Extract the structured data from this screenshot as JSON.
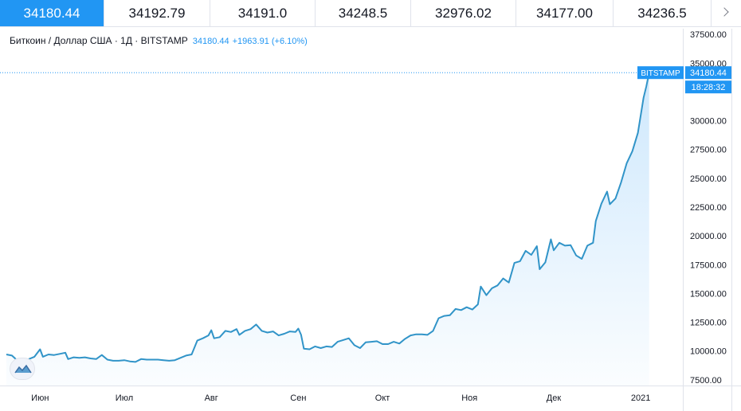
{
  "tabs": [
    {
      "label": "34180.44",
      "active": true
    },
    {
      "label": "34192.79",
      "active": false
    },
    {
      "label": "34191.0",
      "active": false
    },
    {
      "label": "34248.5",
      "active": false
    },
    {
      "label": "32976.02",
      "active": false
    },
    {
      "label": "34177.00",
      "active": false
    },
    {
      "label": "34236.5",
      "active": false
    }
  ],
  "header": {
    "title": "Биткоин / Доллар США · 1Д · BITSTAMP",
    "last_value": "34180.44",
    "change": "+1963.91 (+6.10%)"
  },
  "price_label": {
    "exchange": "BITSTAMP",
    "value": "34180.44",
    "countdown": "18:28:32"
  },
  "colors": {
    "accent": "#2196f3",
    "line": "#3194c8",
    "grid": "#f0f3fa",
    "text": "#131722"
  },
  "icons": {
    "next": "chevron-right-icon",
    "logo": "tradingview-logo-icon"
  },
  "chart_data": {
    "type": "area",
    "ylim": [
      7000,
      38000
    ],
    "yticks": [
      "7500.00",
      "10000.00",
      "12500.00",
      "15000.00",
      "17500.00",
      "20000.00",
      "22500.00",
      "25000.00",
      "27500.00",
      "30000.00",
      "35000.00",
      "37500.00"
    ],
    "ytick_values": [
      7500,
      10000,
      12500,
      15000,
      17500,
      20000,
      22500,
      25000,
      27500,
      30000,
      35000,
      37500
    ],
    "xticks": [
      {
        "label": "Июн",
        "date": "2020-06-01"
      },
      {
        "label": "Июл",
        "date": "2020-07-01"
      },
      {
        "label": "Авг",
        "date": "2020-08-01"
      },
      {
        "label": "Сен",
        "date": "2020-09-01"
      },
      {
        "label": "Окт",
        "date": "2020-10-01"
      },
      {
        "label": "Ноя",
        "date": "2020-11-01"
      },
      {
        "label": "Дек",
        "date": "2020-12-01"
      },
      {
        "label": "2021",
        "date": "2021-01-01"
      }
    ],
    "x_start": "2020-05-20",
    "x_end": "2021-01-16",
    "last_value": 34180.44,
    "series": [
      {
        "points": [
          [
            "2020-05-20",
            9700
          ],
          [
            "2020-05-22",
            9600
          ],
          [
            "2020-05-24",
            9150
          ],
          [
            "2020-05-26",
            8850
          ],
          [
            "2020-05-28",
            9300
          ],
          [
            "2020-05-30",
            9500
          ],
          [
            "2020-06-01",
            10150
          ],
          [
            "2020-06-02",
            9500
          ],
          [
            "2020-06-04",
            9700
          ],
          [
            "2020-06-06",
            9650
          ],
          [
            "2020-06-08",
            9750
          ],
          [
            "2020-06-10",
            9850
          ],
          [
            "2020-06-11",
            9300
          ],
          [
            "2020-06-13",
            9450
          ],
          [
            "2020-06-15",
            9400
          ],
          [
            "2020-06-17",
            9450
          ],
          [
            "2020-06-19",
            9350
          ],
          [
            "2020-06-21",
            9300
          ],
          [
            "2020-06-23",
            9650
          ],
          [
            "2020-06-25",
            9250
          ],
          [
            "2020-06-27",
            9150
          ],
          [
            "2020-06-29",
            9150
          ],
          [
            "2020-07-01",
            9200
          ],
          [
            "2020-07-03",
            9100
          ],
          [
            "2020-07-05",
            9050
          ],
          [
            "2020-07-07",
            9300
          ],
          [
            "2020-07-09",
            9250
          ],
          [
            "2020-07-11",
            9250
          ],
          [
            "2020-07-13",
            9250
          ],
          [
            "2020-07-15",
            9200
          ],
          [
            "2020-07-17",
            9150
          ],
          [
            "2020-07-19",
            9200
          ],
          [
            "2020-07-21",
            9400
          ],
          [
            "2020-07-23",
            9600
          ],
          [
            "2020-07-25",
            9700
          ],
          [
            "2020-07-27",
            10900
          ],
          [
            "2020-07-29",
            11100
          ],
          [
            "2020-07-31",
            11350
          ],
          [
            "2020-08-01",
            11800
          ],
          [
            "2020-08-02",
            11100
          ],
          [
            "2020-08-04",
            11200
          ],
          [
            "2020-08-06",
            11750
          ],
          [
            "2020-08-08",
            11650
          ],
          [
            "2020-08-10",
            11900
          ],
          [
            "2020-08-11",
            11400
          ],
          [
            "2020-08-13",
            11750
          ],
          [
            "2020-08-15",
            11900
          ],
          [
            "2020-08-17",
            12300
          ],
          [
            "2020-08-19",
            11750
          ],
          [
            "2020-08-21",
            11600
          ],
          [
            "2020-08-23",
            11700
          ],
          [
            "2020-08-25",
            11350
          ],
          [
            "2020-08-27",
            11500
          ],
          [
            "2020-08-29",
            11700
          ],
          [
            "2020-08-31",
            11650
          ],
          [
            "2020-09-01",
            11950
          ],
          [
            "2020-09-02",
            11400
          ],
          [
            "2020-09-03",
            10200
          ],
          [
            "2020-09-05",
            10150
          ],
          [
            "2020-09-07",
            10400
          ],
          [
            "2020-09-09",
            10250
          ],
          [
            "2020-09-11",
            10400
          ],
          [
            "2020-09-13",
            10350
          ],
          [
            "2020-09-15",
            10800
          ],
          [
            "2020-09-17",
            10950
          ],
          [
            "2020-09-19",
            11100
          ],
          [
            "2020-09-21",
            10500
          ],
          [
            "2020-09-23",
            10250
          ],
          [
            "2020-09-25",
            10750
          ],
          [
            "2020-09-27",
            10800
          ],
          [
            "2020-09-29",
            10850
          ],
          [
            "2020-10-01",
            10600
          ],
          [
            "2020-10-03",
            10600
          ],
          [
            "2020-10-05",
            10800
          ],
          [
            "2020-10-07",
            10650
          ],
          [
            "2020-10-09",
            11050
          ],
          [
            "2020-10-11",
            11350
          ],
          [
            "2020-10-13",
            11450
          ],
          [
            "2020-10-15",
            11450
          ],
          [
            "2020-10-17",
            11400
          ],
          [
            "2020-10-19",
            11750
          ],
          [
            "2020-10-21",
            12850
          ],
          [
            "2020-10-23",
            13050
          ],
          [
            "2020-10-25",
            13100
          ],
          [
            "2020-10-27",
            13650
          ],
          [
            "2020-10-29",
            13550
          ],
          [
            "2020-10-31",
            13800
          ],
          [
            "2020-11-02",
            13600
          ],
          [
            "2020-11-04",
            14050
          ],
          [
            "2020-11-05",
            15600
          ],
          [
            "2020-11-07",
            14850
          ],
          [
            "2020-11-09",
            15450
          ],
          [
            "2020-11-11",
            15700
          ],
          [
            "2020-11-13",
            16300
          ],
          [
            "2020-11-15",
            15950
          ],
          [
            "2020-11-17",
            17650
          ],
          [
            "2020-11-19",
            17800
          ],
          [
            "2020-11-21",
            18700
          ],
          [
            "2020-11-23",
            18350
          ],
          [
            "2020-11-25",
            19100
          ],
          [
            "2020-11-26",
            17100
          ],
          [
            "2020-11-28",
            17700
          ],
          [
            "2020-11-30",
            19700
          ],
          [
            "2020-12-01",
            18750
          ],
          [
            "2020-12-03",
            19400
          ],
          [
            "2020-12-05",
            19150
          ],
          [
            "2020-12-07",
            19200
          ],
          [
            "2020-12-09",
            18300
          ],
          [
            "2020-12-11",
            18000
          ],
          [
            "2020-12-13",
            19150
          ],
          [
            "2020-12-15",
            19400
          ],
          [
            "2020-12-16",
            21300
          ],
          [
            "2020-12-18",
            22800
          ],
          [
            "2020-12-20",
            23850
          ],
          [
            "2020-12-21",
            22750
          ],
          [
            "2020-12-23",
            23250
          ],
          [
            "2020-12-25",
            24650
          ],
          [
            "2020-12-27",
            26300
          ],
          [
            "2020-12-29",
            27350
          ],
          [
            "2020-12-31",
            28950
          ],
          [
            "2021-01-02",
            32000
          ],
          [
            "2021-01-03",
            33000
          ],
          [
            "2021-01-04",
            34180.44
          ]
        ]
      }
    ]
  }
}
